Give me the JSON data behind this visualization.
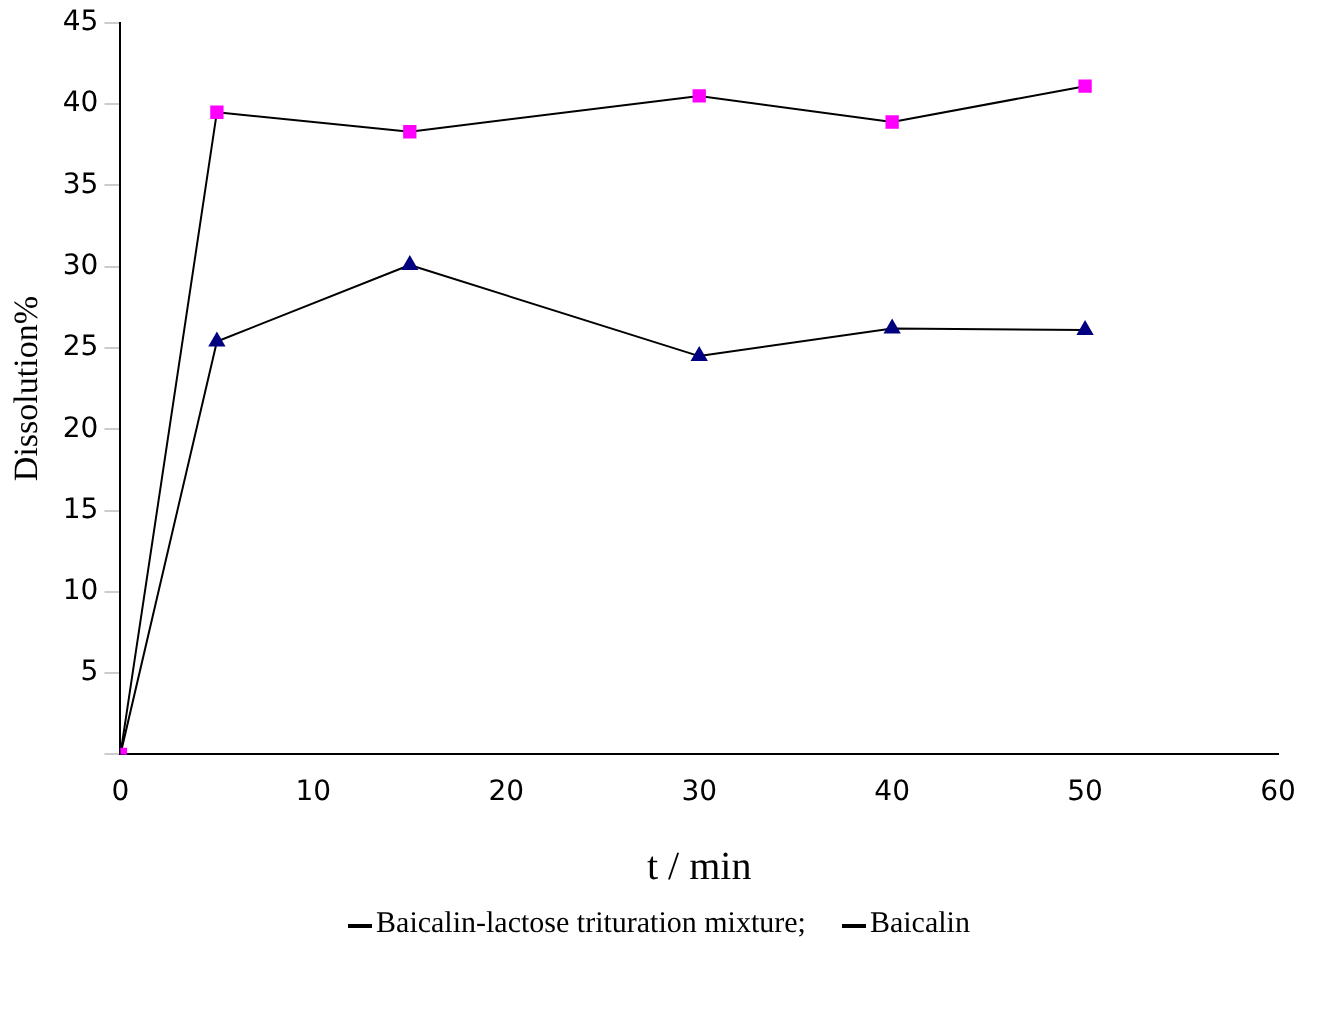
{
  "chart_data": {
    "type": "line",
    "xlabel": "t / min",
    "ylabel": "Dissolution%",
    "xlim": [
      0,
      60
    ],
    "xticks": [
      0,
      10,
      20,
      30,
      40,
      50,
      60
    ],
    "ylim": [
      0,
      45
    ],
    "yticks": [
      {
        "value": 0,
        "label": null
      },
      5,
      10,
      15,
      20,
      25,
      30,
      35,
      40,
      45
    ],
    "x": [
      0,
      5,
      15,
      30,
      40,
      50
    ],
    "series": [
      {
        "name": "Baicalin-lactose trituration mixture;",
        "color": "#ff00ff",
        "marker": "square",
        "values": [
          0,
          39.5,
          38.3,
          40.5,
          38.9,
          41.1
        ]
      },
      {
        "name": "Baicalin",
        "color": "#000080",
        "marker": "triangle",
        "values": [
          0,
          25.4,
          30.1,
          24.5,
          26.2,
          26.1
        ]
      }
    ],
    "grid": false,
    "legend": "bottom"
  }
}
